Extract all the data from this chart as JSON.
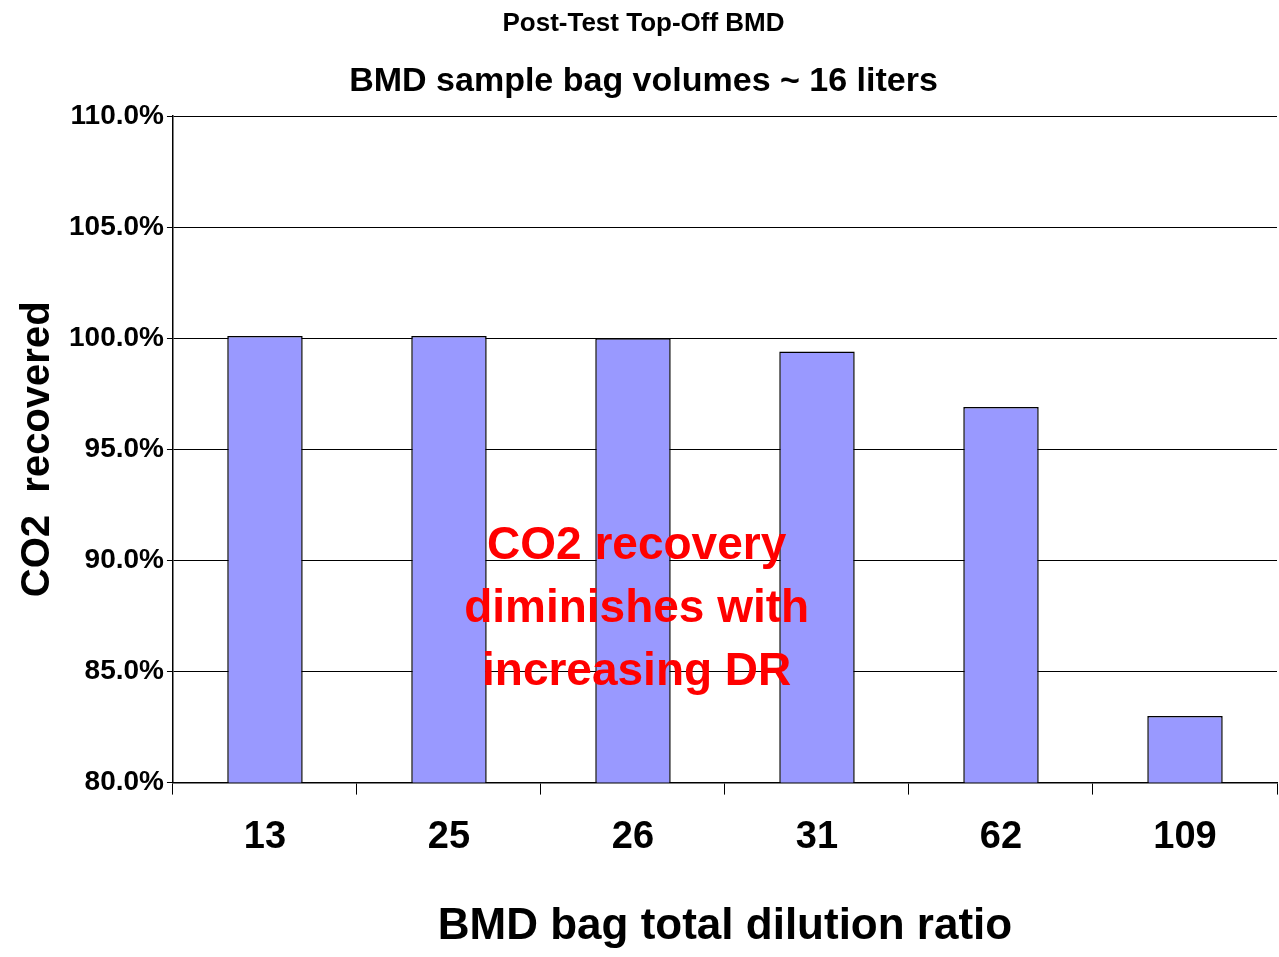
{
  "chart_data": {
    "type": "bar",
    "title": "Post-Test Top-Off BMD",
    "subtitle": "BMD sample bag volumes ~ 16 liters",
    "xlabel": "BMD bag total dilution ratio",
    "ylabel": "CO2  recovered",
    "categories": [
      "13",
      "25",
      "26",
      "31",
      "62",
      "109"
    ],
    "values": [
      100.1,
      100.1,
      100.0,
      99.4,
      96.9,
      83.0
    ],
    "color": "#9999ff",
    "ylim": [
      80,
      110
    ],
    "yticks": [
      {
        "value": 80,
        "label": "80.0%"
      },
      {
        "value": 85,
        "label": "85.0%"
      },
      {
        "value": 90,
        "label": "90.0%"
      },
      {
        "value": 95,
        "label": "95.0%"
      },
      {
        "value": 100,
        "label": "100.0%"
      },
      {
        "value": 105,
        "label": "105.0%"
      },
      {
        "value": 110,
        "label": "110.0%"
      }
    ],
    "grid": "y",
    "legend": false,
    "annotations": [
      "CO2 recovery diminishes with increasing DR"
    ]
  }
}
